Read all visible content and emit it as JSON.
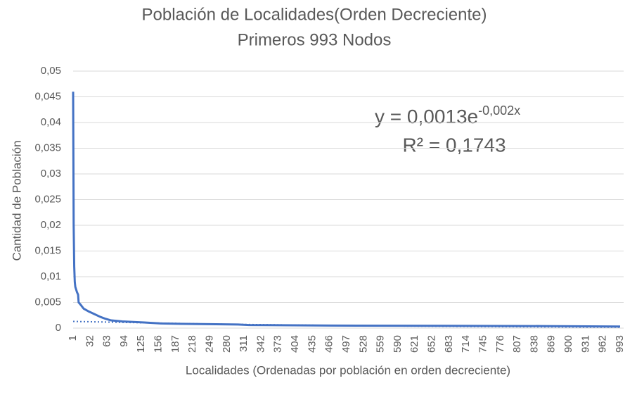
{
  "chart_data": {
    "type": "line",
    "title": "Población de Localidades(Orden Decreciente)",
    "subtitle": "Primeros 993 Nodos",
    "x_label": "Localidades (Ordenadas por población en orden decreciente)",
    "y_label": "Cantidad de Población",
    "annotation": {
      "equation": "y = 0,0013e",
      "exponent": "-0,002x",
      "r_squared": "R² = 0,1743"
    },
    "x": [
      1,
      2,
      3,
      4,
      5,
      8,
      10,
      11,
      15,
      20,
      30,
      40,
      50,
      60,
      70,
      90,
      130,
      160,
      220,
      300,
      320,
      470,
      850,
      993
    ],
    "series": [
      {
        "color": "#4472c4",
        "values": [
          0.046,
          0.02,
          0.012,
          0.009,
          0.008,
          0.007,
          0.0065,
          0.005,
          0.0045,
          0.0038,
          0.0032,
          0.0027,
          0.0022,
          0.0018,
          0.0015,
          0.0013,
          0.0011,
          0.0009,
          0.0008,
          0.0007,
          0.0006,
          0.0005,
          0.0004,
          0.0003
        ]
      }
    ],
    "trendline": {
      "color": "#4472c4",
      "x": [
        1,
        250,
        500,
        750,
        993
      ],
      "values": [
        0.0013,
        0.00079,
        0.00048,
        0.00029,
        0.00018
      ]
    },
    "xlim": [
      1,
      993
    ],
    "xticks": [
      1,
      32,
      63,
      94,
      125,
      156,
      187,
      218,
      249,
      280,
      311,
      342,
      373,
      404,
      435,
      466,
      497,
      528,
      559,
      590,
      621,
      652,
      683,
      714,
      745,
      776,
      807,
      838,
      869,
      900,
      931,
      962,
      993
    ],
    "ylim": [
      0,
      0.05
    ],
    "yticks": [
      0,
      {
        "value": 0.005,
        "label": "0,005"
      },
      {
        "value": 0.01,
        "label": "0,01"
      },
      {
        "value": 0.015,
        "label": "0,015"
      },
      {
        "value": 0.02,
        "label": "0,02"
      },
      {
        "value": 0.025,
        "label": "0,025"
      },
      {
        "value": 0.03,
        "label": "0,03"
      },
      {
        "value": 0.035,
        "label": "0,035"
      },
      {
        "value": 0.04,
        "label": "0,04"
      },
      {
        "value": 0.045,
        "label": "0,045"
      },
      {
        "value": 0.05,
        "label": "0,05"
      }
    ],
    "grid": true
  }
}
